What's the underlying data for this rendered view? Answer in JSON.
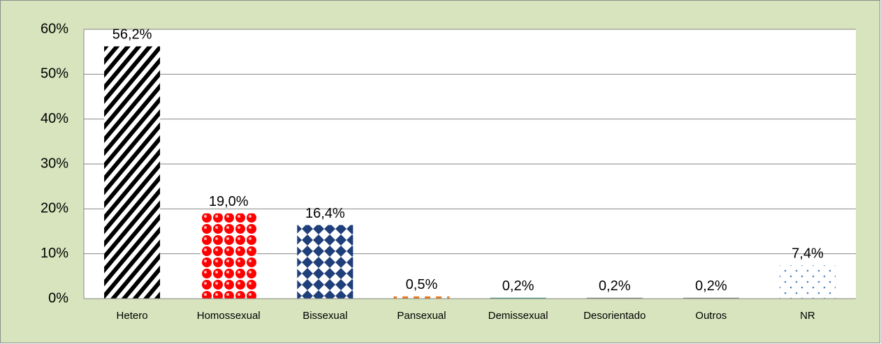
{
  "chart_data": {
    "type": "bar",
    "categories": [
      "Hetero",
      "Homossexual",
      "Bissexual",
      "Pansexual",
      "Demissexual",
      "Desorientado",
      "Outros",
      "NR"
    ],
    "values": [
      56.2,
      19.0,
      16.4,
      0.5,
      0.2,
      0.2,
      0.2,
      7.4
    ],
    "value_labels": [
      "56,2%",
      "19,0%",
      "16,4%",
      "0,5%",
      "0,2%",
      "0,2%",
      "0,2%",
      "7,4%"
    ],
    "colors": [
      "#000000",
      "#ff0000",
      "#1f3f7a",
      "#e97a1f",
      "#2e8b7a",
      "#7f7f7f",
      "#7f7f7f",
      "#4f81bd"
    ],
    "ylim": [
      0,
      60
    ],
    "yticks": [
      {
        "value": 0,
        "label": "0%"
      },
      {
        "value": 10,
        "label": "10%"
      },
      {
        "value": 20,
        "label": "20%"
      },
      {
        "value": 30,
        "label": "30%"
      },
      {
        "value": 40,
        "label": "40%"
      },
      {
        "value": 50,
        "label": "50%"
      },
      {
        "value": 60,
        "label": "60%"
      }
    ],
    "grid": true
  }
}
